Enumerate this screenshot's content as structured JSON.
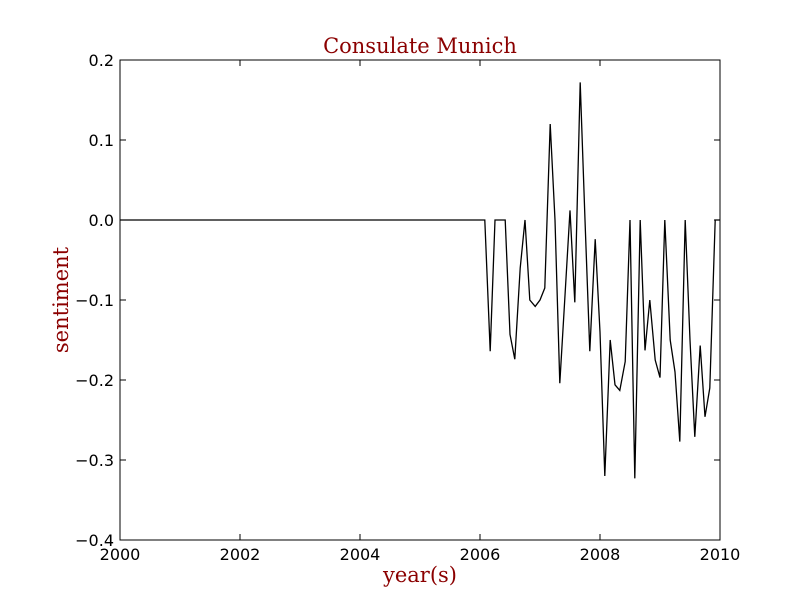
{
  "chart_data": {
    "type": "line",
    "title": "Consulate Munich",
    "xlabel": "year(s)",
    "ylabel": "sentiment",
    "xlim": [
      2000,
      2010
    ],
    "ylim": [
      -0.4,
      0.2
    ],
    "x_ticks": [
      2000,
      2002,
      2004,
      2006,
      2008,
      2010
    ],
    "y_ticks": [
      -0.4,
      -0.3,
      -0.2,
      -0.1,
      0.0,
      0.1,
      0.2
    ],
    "x_tick_labels": [
      "2000",
      "2002",
      "2004",
      "2006",
      "2008",
      "2010"
    ],
    "y_tick_labels": [
      "−0.4",
      "−0.3",
      "−0.2",
      "−0.1",
      "0.0",
      "0.1",
      "0.2"
    ],
    "grid": false,
    "colors": {
      "line": "#000000",
      "label_text": "#8b0000"
    },
    "series": [
      {
        "x": [
          2000.0,
          2006.08,
          2006.17,
          2006.25,
          2006.33,
          2006.42,
          2006.5,
          2006.58,
          2006.67,
          2006.75,
          2006.83,
          2006.92,
          2007.0,
          2007.08,
          2007.17,
          2007.25,
          2007.33,
          2007.42,
          2007.5,
          2007.58,
          2007.67,
          2007.75,
          2007.83,
          2007.92,
          2008.0,
          2008.08,
          2008.17,
          2008.25,
          2008.33,
          2008.42,
          2008.5,
          2008.58,
          2008.67,
          2008.75,
          2008.83,
          2008.92,
          2009.0,
          2009.08,
          2009.17,
          2009.25,
          2009.33,
          2009.42,
          2009.5,
          2009.58,
          2009.67,
          2009.75,
          2009.83,
          2009.92,
          2010.0
        ],
        "y": [
          0.0,
          0.0,
          -0.164,
          0.0,
          0.0,
          0.0,
          -0.143,
          -0.174,
          -0.06,
          0.0,
          -0.1,
          -0.108,
          -0.1,
          -0.085,
          0.12,
          0.0,
          -0.204,
          -0.09,
          0.012,
          -0.103,
          0.172,
          0.0,
          -0.164,
          -0.024,
          -0.14,
          -0.32,
          -0.15,
          -0.206,
          -0.213,
          -0.177,
          0.0,
          -0.323,
          0.0,
          -0.163,
          -0.1,
          -0.175,
          -0.197,
          0.0,
          -0.15,
          -0.19,
          -0.277,
          0.0,
          -0.15,
          -0.271,
          -0.157,
          -0.246,
          -0.21,
          0.0,
          0.0
        ]
      }
    ]
  }
}
